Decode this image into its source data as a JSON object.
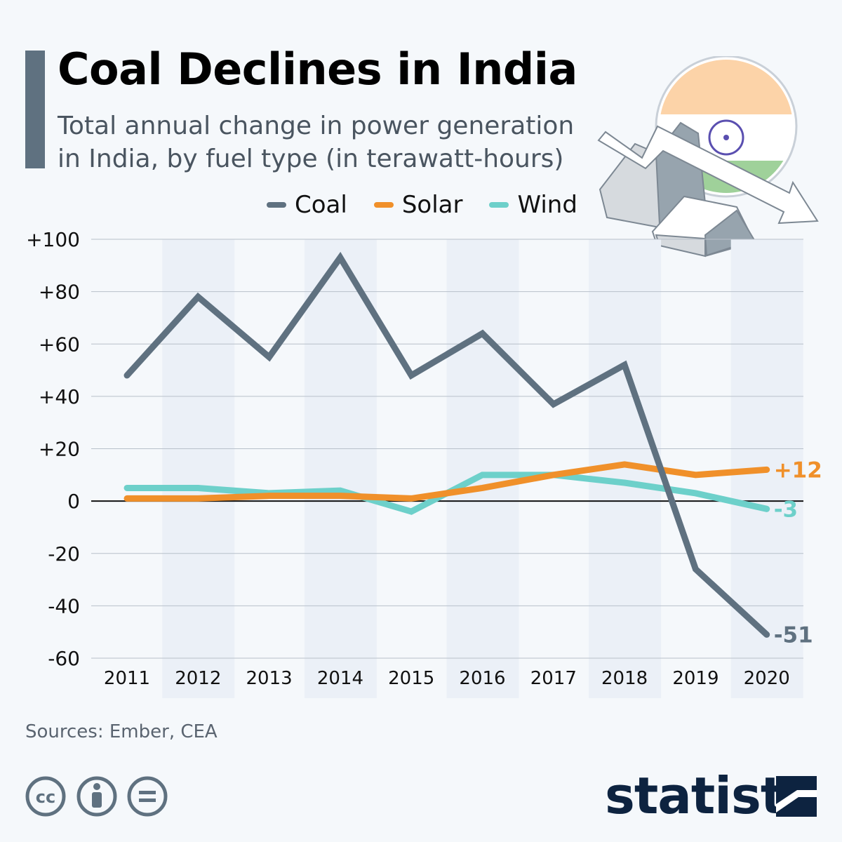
{
  "title": "Coal Declines in India",
  "subtitle": "Total annual change in power generation in India, by fuel type (in terawatt-hours)",
  "source": "Sources: Ember, CEA",
  "brand": "statista",
  "license_icons": [
    "cc-icon",
    "attribution-icon",
    "no-derivatives-icon"
  ],
  "colors": {
    "Coal": "#5f7180",
    "Solar": "#f0902a",
    "Wind": "#6dd0ca",
    "accent_bar": "#5f7180",
    "band": "#ebf0f7"
  },
  "chart_data": {
    "type": "line",
    "title": "Coal Declines in India",
    "subtitle": "Total annual change in power generation in India, by fuel type (in terawatt-hours)",
    "xlabel": "",
    "ylabel": "",
    "x": [
      "2011",
      "2012",
      "2013",
      "2014",
      "2015",
      "2016",
      "2017",
      "2018",
      "2019",
      "2020"
    ],
    "ylim": [
      -60,
      100
    ],
    "yticks": [
      100,
      80,
      60,
      40,
      20,
      0,
      -20,
      -40,
      -60
    ],
    "ytick_labels": [
      "+100",
      "+80",
      "+60",
      "+40",
      "+20",
      "0",
      "-20",
      "-40",
      "-60"
    ],
    "grid": true,
    "legend_placement": "top",
    "series": [
      {
        "name": "Coal",
        "values": [
          48,
          78,
          55,
          93,
          48,
          64,
          37,
          52,
          -26,
          -51
        ],
        "end_label": "-51"
      },
      {
        "name": "Solar",
        "values": [
          1,
          1,
          2,
          2,
          1,
          5,
          10,
          14,
          10,
          12
        ],
        "end_label": "+12"
      },
      {
        "name": "Wind",
        "values": [
          5,
          5,
          3,
          4,
          -4,
          10,
          10,
          7,
          3,
          -3
        ],
        "end_label": "-3"
      }
    ]
  }
}
